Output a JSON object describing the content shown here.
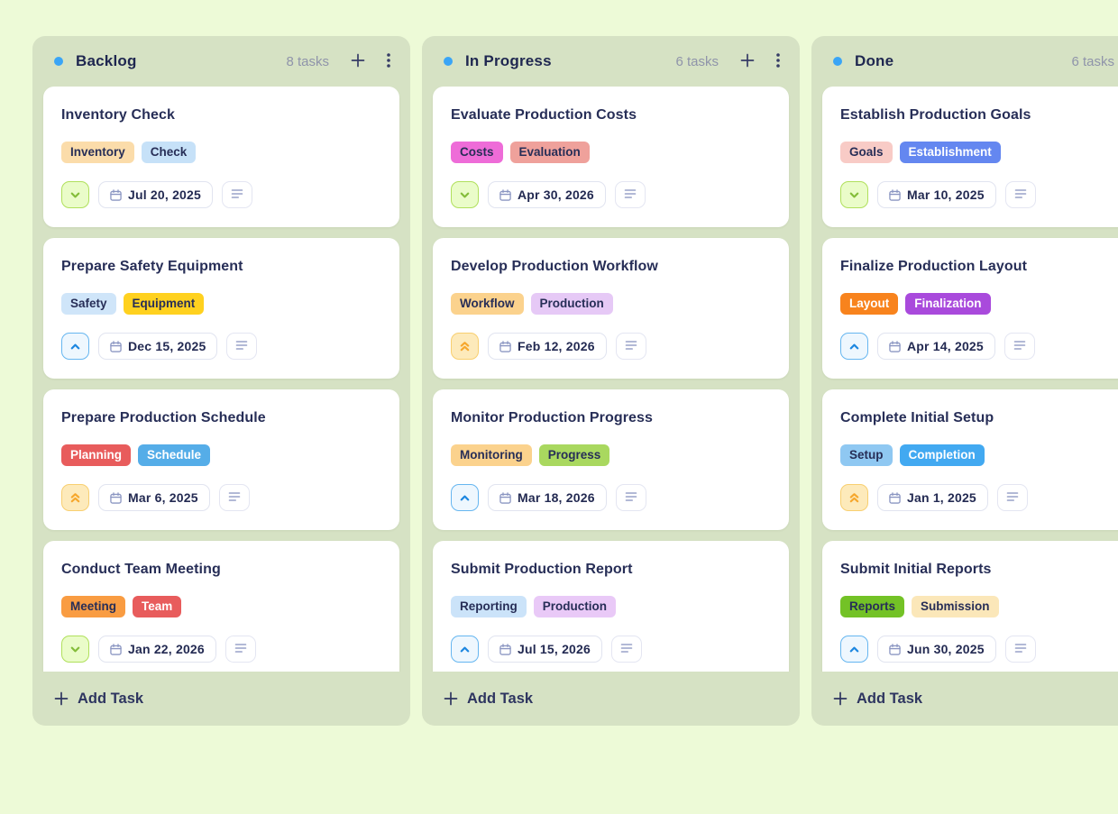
{
  "colors": {
    "page_bg": "#edfad7",
    "column_bg": "#d6e2c4",
    "dot": "#3aa5f6",
    "tag_dark_text": "#272e57"
  },
  "priority_styles": {
    "low": {
      "icon": "chevron-down-icon",
      "bg": "#eafcc9",
      "border": "#b0e05c",
      "glyph": "#84bd3a"
    },
    "medium": {
      "icon": "chevron-up-icon",
      "bg": "#eef7fe",
      "border": "#66b6f0",
      "glyph": "#1d87e0"
    },
    "high": {
      "icon": "chevrons-up-icon",
      "bg": "#fdeabb",
      "border": "#f8cf70",
      "glyph": "#f6a72d"
    }
  },
  "board": {
    "columns": [
      {
        "title": "Backlog",
        "count_label": "8 tasks",
        "add_task_label": "Add Task",
        "tasks": [
          {
            "title": "Inventory Check",
            "priority": "low",
            "date": "Jul 20, 2025",
            "tags": [
              {
                "label": "Inventory",
                "bg": "#fbdcaa",
                "fg": "#272e57"
              },
              {
                "label": "Check",
                "bg": "#c6e1f8",
                "fg": "#272e57"
              }
            ]
          },
          {
            "title": "Prepare Safety Equipment",
            "priority": "medium",
            "date": "Dec 15, 2025",
            "tags": [
              {
                "label": "Safety",
                "bg": "#cfe5f9",
                "fg": "#272e57"
              },
              {
                "label": "Equipment",
                "bg": "#ffd11f",
                "fg": "#272e57"
              }
            ]
          },
          {
            "title": "Prepare Production Schedule",
            "priority": "high",
            "date": "Mar 6, 2025",
            "tags": [
              {
                "label": "Planning",
                "bg": "#e85c5c",
                "fg": "#ffffff"
              },
              {
                "label": "Schedule",
                "bg": "#55ade8",
                "fg": "#ffffff"
              }
            ]
          },
          {
            "title": "Conduct Team Meeting",
            "priority": "low",
            "date": "Jan 22, 2026",
            "tags": [
              {
                "label": "Meeting",
                "bg": "#f99c42",
                "fg": "#272e57"
              },
              {
                "label": "Team",
                "bg": "#e85c5c",
                "fg": "#ffffff"
              }
            ]
          }
        ]
      },
      {
        "title": "In Progress",
        "count_label": "6 tasks",
        "add_task_label": "Add Task",
        "tasks": [
          {
            "title": "Evaluate Production Costs",
            "priority": "low",
            "date": "Apr 30, 2026",
            "tags": [
              {
                "label": "Costs",
                "bg": "#ee6cd8",
                "fg": "#272e57"
              },
              {
                "label": "Evaluation",
                "bg": "#efa19b",
                "fg": "#272e57"
              }
            ]
          },
          {
            "title": "Develop Production Workflow",
            "priority": "high",
            "date": "Feb 12, 2026",
            "tags": [
              {
                "label": "Workflow",
                "bg": "#fbd28d",
                "fg": "#272e57"
              },
              {
                "label": "Production",
                "bg": "#e6c9f6",
                "fg": "#272e57"
              }
            ]
          },
          {
            "title": "Monitor Production Progress",
            "priority": "medium",
            "date": "Mar 18, 2026",
            "tags": [
              {
                "label": "Monitoring",
                "bg": "#fbd28d",
                "fg": "#272e57"
              },
              {
                "label": "Progress",
                "bg": "#a9d85f",
                "fg": "#272e57"
              }
            ]
          },
          {
            "title": "Submit Production Report",
            "priority": "medium",
            "date": "Jul 15, 2026",
            "tags": [
              {
                "label": "Reporting",
                "bg": "#cbe3f9",
                "fg": "#272e57"
              },
              {
                "label": "Production",
                "bg": "#e9c9f7",
                "fg": "#272e57"
              }
            ]
          }
        ]
      },
      {
        "title": "Done",
        "count_label": "6 tasks",
        "add_task_label": "Add Task",
        "tasks": [
          {
            "title": "Establish Production Goals",
            "priority": "low",
            "date": "Mar 10, 2025",
            "tags": [
              {
                "label": "Goals",
                "bg": "#f8cbc6",
                "fg": "#272e57"
              },
              {
                "label": "Establishment",
                "bg": "#6487f0",
                "fg": "#ffffff"
              }
            ]
          },
          {
            "title": "Finalize Production Layout",
            "priority": "medium",
            "date": "Apr 14, 2025",
            "tags": [
              {
                "label": "Layout",
                "bg": "#f8831d",
                "fg": "#ffffff"
              },
              {
                "label": "Finalization",
                "bg": "#a94adc",
                "fg": "#ffffff"
              }
            ]
          },
          {
            "title": "Complete Initial Setup",
            "priority": "high",
            "date": "Jan 1, 2025",
            "tags": [
              {
                "label": "Setup",
                "bg": "#8fc8f2",
                "fg": "#272e57"
              },
              {
                "label": "Completion",
                "bg": "#42a9f1",
                "fg": "#ffffff"
              }
            ]
          },
          {
            "title": "Submit Initial Reports",
            "priority": "medium",
            "date": "Jun 30, 2025",
            "tags": [
              {
                "label": "Reports",
                "bg": "#73c226",
                "fg": "#272e57"
              },
              {
                "label": "Submission",
                "bg": "#fbe7b9",
                "fg": "#272e57"
              }
            ]
          }
        ]
      }
    ]
  }
}
